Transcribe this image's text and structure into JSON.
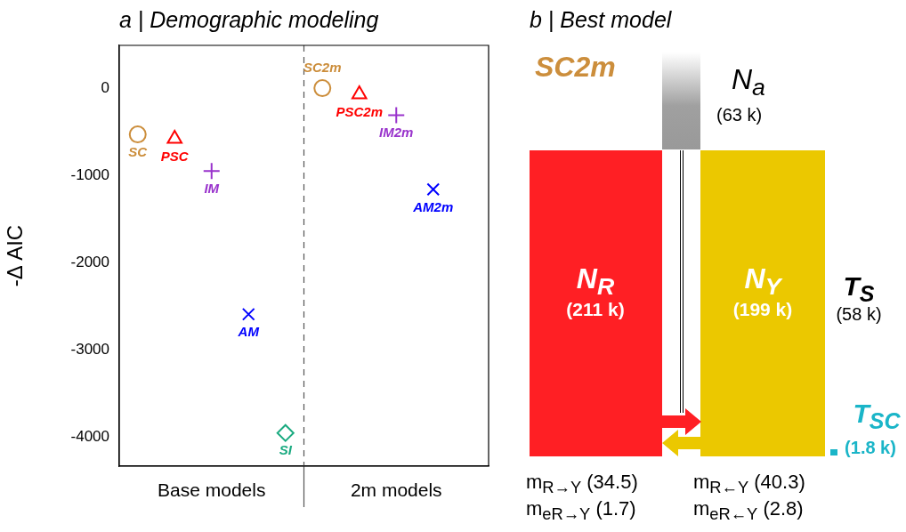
{
  "chart_data": [
    {
      "type": "scatter",
      "title": "a | Demographic modeling",
      "ylabel": "-Δ AIC",
      "categories": [
        null,
        null,
        null,
        null,
        null,
        null,
        null,
        null,
        null,
        null
      ],
      "series": [
        {
          "name": "SC",
          "color": "#cc8e3c",
          "marker": "circle",
          "values": [
            -530,
            null,
            null,
            null,
            null,
            null,
            null,
            null,
            null,
            null
          ]
        },
        {
          "name": "PSC",
          "color": "#ff0000",
          "marker": "triangle",
          "values": [
            null,
            -580,
            null,
            null,
            null,
            null,
            null,
            null,
            null,
            null
          ]
        },
        {
          "name": "IM",
          "color": "#9933cc",
          "marker": "plus",
          "values": [
            null,
            null,
            -950,
            null,
            null,
            null,
            null,
            null,
            null,
            null
          ]
        },
        {
          "name": "AM",
          "color": "#0000ff",
          "marker": "cross",
          "values": [
            null,
            null,
            null,
            -2590,
            null,
            null,
            null,
            null,
            null,
            null
          ]
        },
        {
          "name": "SI",
          "color": "#1aaa80",
          "marker": "diamond",
          "values": [
            null,
            null,
            null,
            null,
            -3950,
            null,
            null,
            null,
            null,
            null
          ]
        },
        {
          "name": "SC2m",
          "color": "#cc8e3c",
          "marker": "circle",
          "values": [
            null,
            null,
            null,
            null,
            null,
            0,
            null,
            null,
            null,
            null
          ]
        },
        {
          "name": "PSC2m",
          "color": "#ff0000",
          "marker": "triangle",
          "values": [
            null,
            null,
            null,
            null,
            null,
            null,
            -70,
            null,
            null,
            null
          ]
        },
        {
          "name": "IM2m",
          "color": "#9933cc",
          "marker": "plus",
          "values": [
            null,
            null,
            null,
            null,
            null,
            null,
            null,
            -310,
            null,
            null
          ]
        },
        {
          "name": "AM2m",
          "color": "#0000ff",
          "marker": "cross",
          "values": [
            null,
            null,
            null,
            null,
            null,
            null,
            null,
            null,
            -1160,
            null
          ]
        }
      ],
      "ylim": [
        -4330,
        490
      ],
      "yticks": [
        0,
        -1000,
        -2000,
        -3000,
        -4000
      ],
      "tick_labels": "y",
      "grid": false,
      "legend": false,
      "ref_lines": [
        {
          "axis": "x",
          "line_style": "dashed",
          "color": "#555555"
        }
      ],
      "annotations": [
        "Base models",
        "2m models"
      ]
    },
    {
      "type": "other",
      "title": "b | Best model",
      "annotations": [
        "SC2m",
        "N$_{a}$",
        "(63 k)",
        "N$_{R}$",
        "(211 k)",
        "N$_{Y}$",
        "(199 k)",
        "T$_{S}$",
        "(58 k)",
        "T$_{SC}$",
        "(1.8 k)",
        "m$_{R→Y}$ (34.5)",
        "m$_{eR→Y}$ (1.7)",
        "m$_{R←Y}$ (40.3)",
        "m$_{eR←Y}$ (2.8)"
      ]
    }
  ]
}
